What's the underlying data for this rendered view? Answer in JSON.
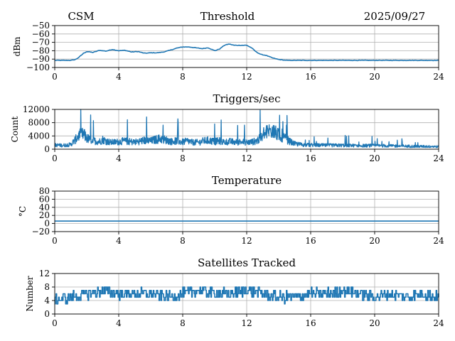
{
  "header": {
    "left_label": "CSM",
    "center_label": "Threshold",
    "right_label": "2025/09/27"
  },
  "colors": {
    "series": "#1f77b4",
    "grid": "#b0b0b0",
    "axis": "#000000"
  },
  "chart_data": [
    {
      "type": "line",
      "name": "threshold",
      "title": "",
      "xlabel": "",
      "ylabel": "dBm",
      "xlim": [
        0,
        24
      ],
      "ylim": [
        -100,
        -50
      ],
      "xticks": [
        0,
        4,
        8,
        12,
        16,
        20,
        24
      ],
      "yticks": [
        -100,
        -90,
        -80,
        -70,
        -60,
        -50
      ],
      "ytick_labels": [
        "−100",
        "−90",
        "−80",
        "−70",
        "−60",
        "−50"
      ],
      "grid": true,
      "style": "smooth",
      "series": [
        {
          "name": "Threshold",
          "x": [
            0,
            0.6,
            1.0,
            1.3,
            1.5,
            1.8,
            2.0,
            2.4,
            2.8,
            3.2,
            3.6,
            4.0,
            4.4,
            4.8,
            5.2,
            5.6,
            6.0,
            6.4,
            6.8,
            7.2,
            7.6,
            8.0,
            8.4,
            8.8,
            9.2,
            9.6,
            10.0,
            10.3,
            10.6,
            10.9,
            11.2,
            11.6,
            12.0,
            12.3,
            12.6,
            12.9,
            13.2,
            13.6,
            14.0,
            14.5,
            15.0,
            16.0,
            18.0,
            20.0,
            22.0,
            24.0
          ],
          "values": [
            -91.5,
            -91.5,
            -91.5,
            -90.5,
            -88,
            -83,
            -81,
            -82,
            -79.5,
            -80.5,
            -78.5,
            -80,
            -79.5,
            -81.5,
            -81,
            -83,
            -82.5,
            -82.5,
            -81.5,
            -79.5,
            -77,
            -75.5,
            -75.5,
            -76.5,
            -77.5,
            -76.5,
            -80,
            -78,
            -73.5,
            -72,
            -73.5,
            -73.5,
            -73.5,
            -76.5,
            -81.5,
            -84.5,
            -85.5,
            -88.5,
            -90.5,
            -91.5,
            -91.5,
            -91.5,
            -91.5,
            -91.5,
            -91.5,
            -91.5
          ]
        }
      ]
    },
    {
      "type": "line",
      "name": "triggers",
      "title": "Triggers/sec",
      "xlabel": "",
      "ylabel": "Count",
      "xlim": [
        0,
        24
      ],
      "ylim": [
        0,
        12000
      ],
      "xticks": [
        0,
        4,
        8,
        12,
        16,
        20,
        24
      ],
      "yticks": [
        0,
        4000,
        8000,
        12000
      ],
      "ytick_labels": [
        "0",
        "4000",
        "8000",
        "12000"
      ],
      "grid": true,
      "style": "noisy",
      "series": [
        {
          "name": "Triggers/sec",
          "x": [
            0,
            0.5,
            1.0,
            1.3,
            1.5,
            1.8,
            2.0,
            2.2,
            2.5,
            2.8,
            3.0,
            3.2,
            3.5,
            3.8,
            4.0,
            4.3,
            4.6,
            5.0,
            5.3,
            5.6,
            6.0,
            6.3,
            6.6,
            7.0,
            7.3,
            7.6,
            8.0,
            8.3,
            8.6,
            9.0,
            9.3,
            9.6,
            10.0,
            10.3,
            10.6,
            11.0,
            11.3,
            11.6,
            12.0,
            12.3,
            12.6,
            13.0,
            13.3,
            13.6,
            13.9,
            14.2,
            14.5,
            14.8,
            15.0,
            15.5,
            16.0,
            17.0,
            18.0,
            19.0,
            20.0,
            21.0,
            22.0,
            23.0,
            23.6,
            24.0
          ],
          "values": [
            1500,
            1400,
            1700,
            3500,
            5000,
            5500,
            4000,
            3500,
            3000,
            2800,
            3500,
            3000,
            2500,
            2600,
            2700,
            3000,
            2800,
            2600,
            2900,
            3200,
            3000,
            3500,
            3800,
            3300,
            2800,
            3000,
            2600,
            3000,
            2500,
            2500,
            3000,
            3200,
            2800,
            3000,
            2600,
            2800,
            2500,
            2700,
            2500,
            2600,
            3000,
            4500,
            6500,
            7000,
            5500,
            4500,
            3500,
            2500,
            2000,
            1600,
            1500,
            1400,
            1400,
            1300,
            1300,
            1200,
            1100,
            1000,
            1000,
            900
          ]
        }
      ]
    },
    {
      "type": "line",
      "name": "temperature",
      "title": "Temperature",
      "xlabel": "",
      "ylabel": "°C",
      "xlim": [
        0,
        24
      ],
      "ylim": [
        -20,
        80
      ],
      "xticks": [
        0,
        4,
        8,
        12,
        16,
        20,
        24
      ],
      "yticks": [
        -20,
        0,
        20,
        40,
        60,
        80
      ],
      "ytick_labels": [
        "−20",
        "0",
        "20",
        "40",
        "60",
        "80"
      ],
      "grid": true,
      "style": "smooth",
      "series": [
        {
          "name": "Temperature",
          "x": [
            0,
            24
          ],
          "values": [
            6,
            6
          ]
        }
      ]
    },
    {
      "type": "line",
      "name": "satellites",
      "title": "Satellites Tracked",
      "xlabel": "",
      "ylabel": "Number",
      "xlim": [
        0,
        24
      ],
      "ylim": [
        0,
        12
      ],
      "xticks": [
        0,
        4,
        8,
        12,
        16,
        20,
        24
      ],
      "yticks": [
        0,
        4,
        8,
        12
      ],
      "ytick_labels": [
        "0",
        "4",
        "8",
        "12"
      ],
      "grid": true,
      "style": "step",
      "series": [
        {
          "name": "Satellites Tracked",
          "x": [
            0,
            1,
            2,
            3,
            4,
            5,
            6,
            7,
            8,
            9,
            10,
            11,
            12,
            13,
            14,
            15,
            16,
            17,
            18,
            19,
            20,
            21,
            22,
            23,
            24
          ],
          "values": [
            4,
            5,
            6,
            7,
            6,
            6,
            6,
            5,
            6,
            7,
            6,
            6,
            7,
            6,
            5,
            5,
            6,
            6,
            7,
            6,
            5,
            6,
            5,
            6,
            5
          ]
        }
      ]
    }
  ]
}
